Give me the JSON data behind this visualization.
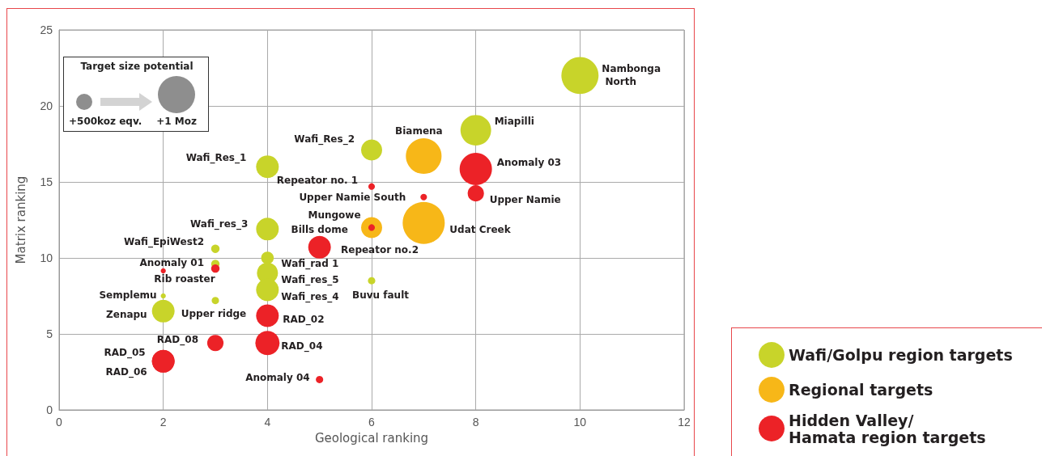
{
  "chart_data": {
    "type": "bubble",
    "xlabel": "Geological ranking",
    "ylabel": "Matrix ranking",
    "xlim": [
      0,
      12
    ],
    "xticks": [
      0,
      2,
      4,
      6,
      8,
      10,
      12
    ],
    "ylim": [
      0,
      25
    ],
    "yticks": [
      0,
      5,
      10,
      15,
      20,
      25
    ],
    "grid": true,
    "legend": "bottom right",
    "annotations": [
      "Target size potential",
      "+500koz eqv.",
      "+1 Moz",
      {
        "text": "Nambonga North",
        "x": 10,
        "y": 22
      },
      {
        "text": "Miapilli",
        "x": 8,
        "y": 18.4
      },
      {
        "text": "Wafi_Res_2",
        "x": 6,
        "y": 17.1
      },
      {
        "text": "Wafi_Res_1",
        "x": 4,
        "y": 16
      },
      {
        "text": "Wafi_res_3",
        "x": 4,
        "y": 11.9
      },
      {
        "text": "Wafi_EpiWest2",
        "x": 3,
        "y": 10.6
      },
      {
        "text": "Anomaly 01",
        "x": 3,
        "y": 9.6
      },
      {
        "text": "Wafi_rad 1",
        "x": 4,
        "y": 10
      },
      {
        "text": "Wafi_res_5",
        "x": 4,
        "y": 9
      },
      {
        "text": "Wafi_res_4",
        "x": 4,
        "y": 7.9
      },
      {
        "text": "Buvu fault",
        "x": 6,
        "y": 8.5
      },
      {
        "text": "Semplemu",
        "x": 2,
        "y": 7.5
      },
      {
        "text": "Zenapu",
        "x": 2,
        "y": 6.5
      },
      {
        "text": "Upper ridge",
        "x": 3,
        "y": 7.2
      },
      {
        "text": "Biamena",
        "x": 7,
        "y": 16.7
      },
      {
        "text": "Udat Creek",
        "x": 7,
        "y": 12.3
      },
      {
        "text": "Mungowe",
        "x": 6,
        "y": 12
      },
      {
        "text": "Anomaly 03",
        "x": 8,
        "y": 15.85
      },
      {
        "text": "Upper Namie",
        "x": 8,
        "y": 14.25
      },
      {
        "text": "Repeator no. 1",
        "x": 6,
        "y": 14.7
      },
      {
        "text": "Upper Namie South",
        "x": 7,
        "y": 14
      },
      {
        "text": "Repeator no.2",
        "x": 6,
        "y": 12
      },
      {
        "text": "Bills dome",
        "x": 5,
        "y": 10.7
      },
      {
        "text": "Rib roaster",
        "x": 3,
        "y": 9.3
      },
      {
        "text": "RAD_02",
        "x": 4,
        "y": 6.2
      },
      {
        "text": "RAD_08",
        "x": 3,
        "y": 4.4
      },
      {
        "text": "RAD_04",
        "x": 4,
        "y": 4.4
      },
      {
        "text": "RAD_05",
        "x": 2,
        "y": 3.2
      },
      {
        "text": "RAD_06",
        "x": 2,
        "y": 3.2
      },
      {
        "text": "Anomaly 04",
        "x": 5,
        "y": 2
      }
    ],
    "series": [
      {
        "name": "Wafi/Golpu region targets",
        "color": "#c8d42a",
        "x": [
          10,
          8,
          6,
          4,
          4,
          3,
          3,
          4,
          4,
          4,
          6,
          2,
          2,
          3
        ],
        "values": [
          22,
          18.4,
          17.1,
          16,
          11.9,
          10.6,
          9.6,
          10,
          9,
          7.9,
          8.5,
          7.5,
          6.5,
          7.2
        ],
        "sizes": [
          0.78,
          0.53,
          0.25,
          0.29,
          0.29,
          0.04,
          0.04,
          0.09,
          0.25,
          0.29,
          0.03,
          0.015,
          0.29,
          0.03
        ]
      },
      {
        "name": "Regional targets",
        "color": "#f7b718",
        "x": [
          7,
          7,
          6
        ],
        "values": [
          16.7,
          12.3,
          12
        ],
        "sizes": [
          0.72,
          1,
          0.25
        ]
      },
      {
        "name": "Hidden Valley/\nHamata region targets",
        "color": "#ec2227",
        "x": [
          8,
          8,
          6,
          7,
          6,
          5,
          3,
          2,
          4,
          3,
          4,
          2,
          2,
          5
        ],
        "values": [
          15.85,
          14.25,
          14.7,
          14,
          12,
          10.7,
          9.3,
          9.15,
          6.2,
          4.4,
          4.4,
          3.2,
          3.2,
          2
        ],
        "sizes": [
          0.59,
          0.15,
          0.024,
          0.024,
          0.024,
          0.29,
          0.04,
          0.015,
          0.29,
          0.15,
          0.33,
          0.29,
          0.29,
          0.03
        ]
      }
    ]
  }
}
